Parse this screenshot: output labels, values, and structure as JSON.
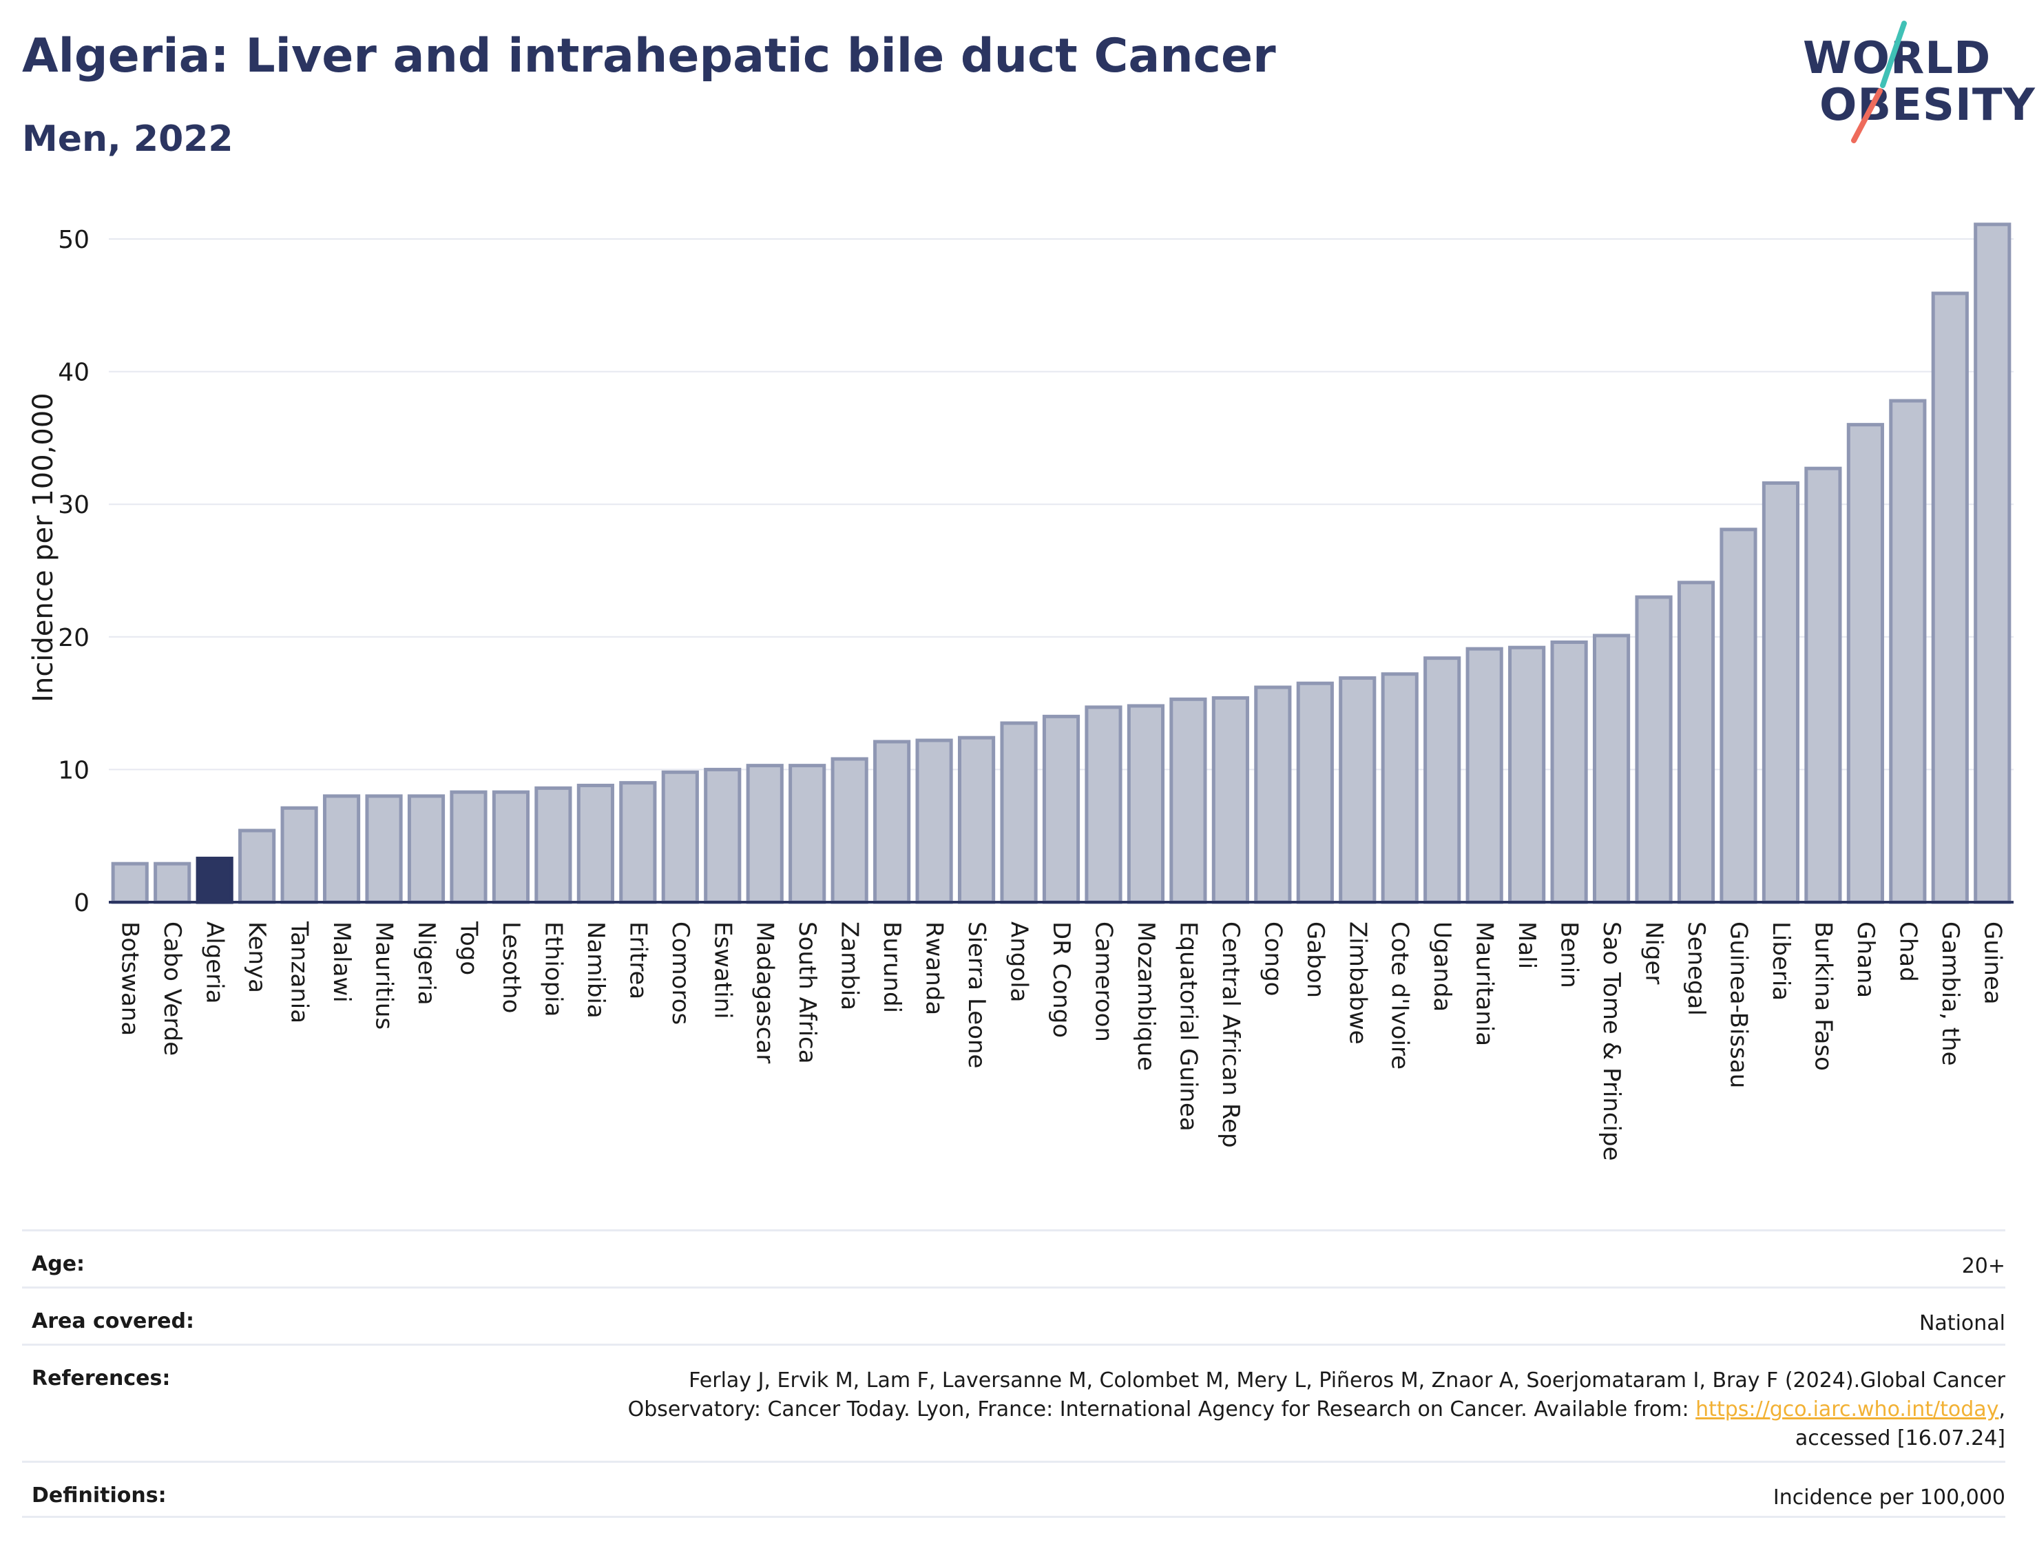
{
  "title": "Algeria: Liver and intrahepatic bile duct Cancer",
  "subtitle": "Men, 2022",
  "logo": {
    "line1": "WORLD",
    "line2": "OBESITY",
    "accent_colors": [
      "#40c1b6",
      "#ee6b5b"
    ]
  },
  "colors": {
    "bar": "#bec3d1",
    "bar_border": "#8f97b3",
    "highlight": "#2b3561",
    "axis": "#2b3561",
    "grid": "#e6e8f0"
  },
  "chart_data": {
    "type": "bar",
    "ylabel": "Incidence per 100,000",
    "xlabel": "",
    "ylim": [
      0,
      53
    ],
    "yticks": [
      0,
      10,
      20,
      30,
      40,
      50
    ],
    "grid": true,
    "highlight": "Algeria",
    "categories": [
      "Botswana",
      "Cabo Verde",
      "Algeria",
      "Kenya",
      "Tanzania",
      "Malawi",
      "Mauritius",
      "Nigeria",
      "Togo",
      "Lesotho",
      "Ethiopia",
      "Namibia",
      "Eritrea",
      "Comoros",
      "Eswatini",
      "Madagascar",
      "South Africa",
      "Zambia",
      "Burundi",
      "Rwanda",
      "Sierra Leone",
      "Angola",
      "DR Congo",
      "Cameroon",
      "Mozambique",
      "Equatorial Guinea",
      "Central African Rep",
      "Congo",
      "Gabon",
      "Zimbabwe",
      "Cote d'Ivoire",
      "Uganda",
      "Mauritania",
      "Mali",
      "Benin",
      "Sao Tome & Principe",
      "Niger",
      "Senegal",
      "Guinea-Bissau",
      "Liberia",
      "Burkina Faso",
      "Ghana",
      "Chad",
      "Gambia, the",
      "Guinea"
    ],
    "values": [
      2.9,
      2.9,
      3.3,
      5.4,
      7.1,
      8.0,
      8.0,
      8.0,
      8.3,
      8.3,
      8.6,
      8.8,
      9.0,
      9.8,
      10.0,
      10.3,
      10.3,
      10.8,
      12.1,
      12.2,
      12.4,
      13.5,
      14.0,
      14.7,
      14.8,
      15.3,
      15.4,
      16.2,
      16.5,
      16.9,
      17.2,
      18.4,
      19.1,
      19.2,
      19.6,
      20.1,
      23.0,
      24.1,
      28.1,
      31.6,
      32.7,
      36.0,
      37.8,
      45.9,
      51.1
    ]
  },
  "meta": [
    {
      "label": "Age:",
      "value": "20+"
    },
    {
      "label": "Area covered:",
      "value": "National"
    },
    {
      "label": "References:",
      "line1": "Ferlay J, Ervik M, Lam F, Laversanne M, Colombet M, Mery L, Piñeros M, Znaor A, Soerjomataram I, Bray F (2024).Global Cancer",
      "line2_pre": "Observatory: Cancer Today. Lyon, France: International Agency for Research on Cancer. Available from: ",
      "link": "https://gco.iarc.who.int/today",
      "line2_post": ",",
      "line3": "accessed [16.07.24]"
    },
    {
      "label": "Definitions:",
      "value": "Incidence per 100,000"
    }
  ]
}
